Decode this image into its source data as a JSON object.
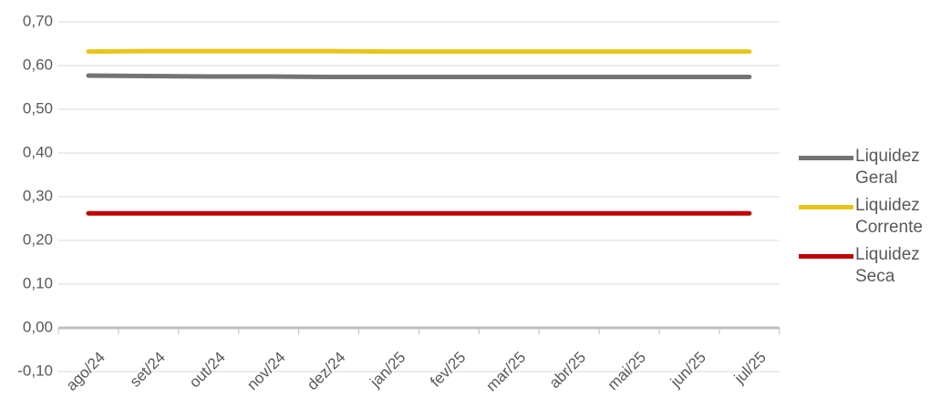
{
  "chart_data": {
    "type": "line",
    "categories": [
      "ago/24",
      "set/24",
      "out/24",
      "nov/24",
      "dez/24",
      "jan/25",
      "fev/25",
      "mar/25",
      "abr/25",
      "mai/25",
      "jun/25",
      "jul/25"
    ],
    "series": [
      {
        "name": "Liquidez Geral",
        "color": "#737373",
        "values": [
          0.577,
          0.576,
          0.575,
          0.575,
          0.574,
          0.574,
          0.574,
          0.574,
          0.574,
          0.574,
          0.574,
          0.574
        ]
      },
      {
        "name": "Liquidez Corrente",
        "color": "#e8c619",
        "values": [
          0.632,
          0.633,
          0.633,
          0.633,
          0.633,
          0.632,
          0.632,
          0.632,
          0.632,
          0.632,
          0.632,
          0.632
        ]
      },
      {
        "name": "Liquidez Seca",
        "color": "#c00000",
        "values": [
          0.262,
          0.262,
          0.262,
          0.262,
          0.262,
          0.262,
          0.262,
          0.262,
          0.262,
          0.262,
          0.262,
          0.262
        ]
      }
    ],
    "ylim": [
      -0.1,
      0.7
    ],
    "yticks": [
      {
        "value": -0.1,
        "label": "-0,10"
      },
      {
        "value": 0,
        "label": "0,00"
      },
      {
        "value": 0.1,
        "label": "0,10"
      },
      {
        "value": 0.2,
        "label": "0,20"
      },
      {
        "value": 0.3,
        "label": "0,30"
      },
      {
        "value": 0.4,
        "label": "0,40"
      },
      {
        "value": 0.5,
        "label": "0,50"
      },
      {
        "value": 0.6,
        "label": "0,60"
      },
      {
        "value": 0.7,
        "label": "0,70"
      }
    ],
    "grid": true,
    "legend": "right"
  }
}
